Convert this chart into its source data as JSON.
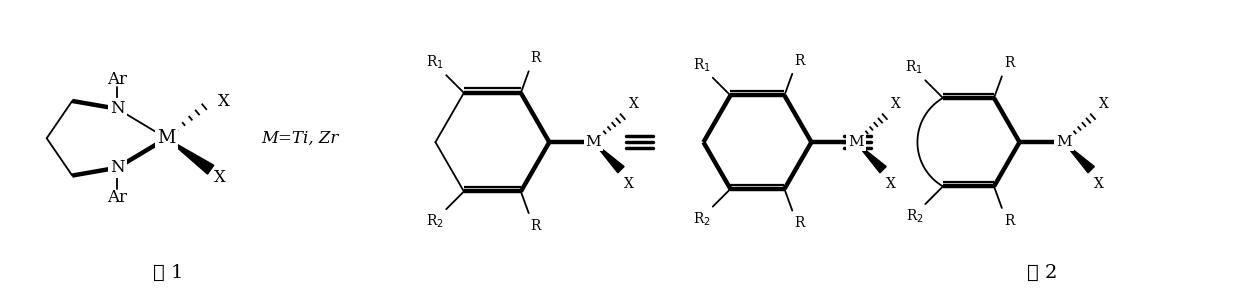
{
  "bg_color": "#ffffff",
  "fig_width": 12.39,
  "fig_height": 3.03,
  "formula1_label": "式 1",
  "formula2_label": "式 2",
  "MeTiZr_label": "M=Ti, Zr"
}
